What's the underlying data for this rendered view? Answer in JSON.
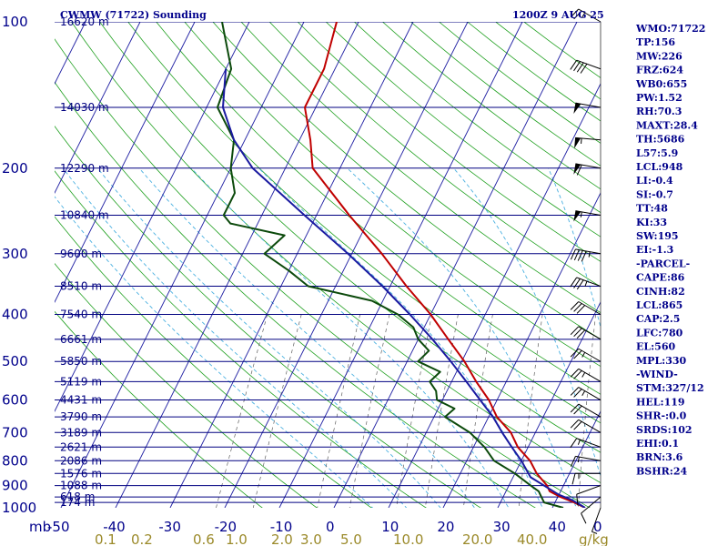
{
  "header": {
    "station": "CWMW (71722) Sounding",
    "time": "1200Z  9 AUG 25"
  },
  "chart_data": {
    "type": "line",
    "title": "CWMW (71722) Sounding",
    "pressure_levels": [
      100,
      200,
      300,
      400,
      500,
      600,
      700,
      800,
      900,
      1000
    ],
    "pressure_axis_label": "mb",
    "height_lines": [
      {
        "p": 100,
        "label": "16620 m"
      },
      {
        "p": 150,
        "label": "14030 m"
      },
      {
        "p": 200,
        "label": "12290 m"
      },
      {
        "p": 250,
        "label": "10840 m"
      },
      {
        "p": 300,
        "label": "9600 m"
      },
      {
        "p": 350,
        "label": "8510 m"
      },
      {
        "p": 400,
        "label": "7540 m"
      },
      {
        "p": 450,
        "label": "6661 m"
      },
      {
        "p": 500,
        "label": "5850 m"
      },
      {
        "p": 550,
        "label": "5119 m"
      },
      {
        "p": 600,
        "label": "4431 m"
      },
      {
        "p": 650,
        "label": "3790 m"
      },
      {
        "p": 700,
        "label": "3189 m"
      },
      {
        "p": 750,
        "label": "2621 m"
      },
      {
        "p": 800,
        "label": "2086 m"
      },
      {
        "p": 850,
        "label": "1576 m"
      },
      {
        "p": 900,
        "label": "1088 m"
      },
      {
        "p": 950,
        "label": "618 m"
      },
      {
        "p": 975,
        "label": "174 m"
      }
    ],
    "temperature_ticks": [
      -50,
      -40,
      -30,
      -20,
      -10,
      0,
      10,
      20,
      30,
      40,
      0
    ],
    "mixing_ratio_label": "g/kg",
    "mixing_ratio_ticks": [
      {
        "v": 0.1,
        "label": "0.1"
      },
      {
        "v": 0.2,
        "label": "0.2"
      },
      {
        "v": 0.6,
        "label": "0.6"
      },
      {
        "v": 1.0,
        "label": "1.0"
      },
      {
        "v": 2.0,
        "label": "2.0"
      },
      {
        "v": 3.0,
        "label": "3.0"
      },
      {
        "v": 5.0,
        "label": "5.0"
      },
      {
        "v": 10.0,
        "label": "10.0"
      },
      {
        "v": 20.0,
        "label": "20.0"
      },
      {
        "v": 40.0,
        "label": "40.0"
      }
    ],
    "series": [
      {
        "kind": "temperature",
        "color": "#c00000",
        "points": [
          [
            1000,
            26
          ],
          [
            975,
            23.5
          ],
          [
            950,
            20.5
          ],
          [
            925,
            18
          ],
          [
            900,
            17
          ],
          [
            850,
            14
          ],
          [
            800,
            11.6
          ],
          [
            750,
            8.1
          ],
          [
            700,
            5.5
          ],
          [
            650,
            1.5
          ],
          [
            600,
            -1.5
          ],
          [
            550,
            -5.5
          ],
          [
            500,
            -9.5
          ],
          [
            450,
            -14.5
          ],
          [
            400,
            -20
          ],
          [
            350,
            -27
          ],
          [
            300,
            -34.5
          ],
          [
            250,
            -44
          ],
          [
            200,
            -55
          ],
          [
            175,
            -58
          ],
          [
            150,
            -62
          ],
          [
            125,
            -62
          ],
          [
            100,
            -64
          ]
        ]
      },
      {
        "kind": "dewpoint",
        "color": "#0c4a0c",
        "points": [
          [
            1000,
            22
          ],
          [
            975,
            18
          ],
          [
            950,
            17
          ],
          [
            925,
            16
          ],
          [
            900,
            14
          ],
          [
            850,
            10
          ],
          [
            800,
            5
          ],
          [
            750,
            2
          ],
          [
            700,
            -2
          ],
          [
            650,
            -8
          ],
          [
            625,
            -7
          ],
          [
            600,
            -11
          ],
          [
            575,
            -12
          ],
          [
            550,
            -14
          ],
          [
            525,
            -13
          ],
          [
            500,
            -18
          ],
          [
            475,
            -17
          ],
          [
            450,
            -20
          ],
          [
            425,
            -22
          ],
          [
            400,
            -26
          ],
          [
            375,
            -32
          ],
          [
            350,
            -45
          ],
          [
            325,
            -50
          ],
          [
            300,
            -56
          ],
          [
            275,
            -54
          ],
          [
            260,
            -65
          ],
          [
            250,
            -67
          ],
          [
            225,
            -67
          ],
          [
            200,
            -70
          ],
          [
            175,
            -72
          ],
          [
            150,
            -78
          ],
          [
            125,
            -79
          ],
          [
            100,
            -85
          ]
        ]
      },
      {
        "kind": "parcel",
        "color": "#1a1aa0",
        "points": [
          [
            1000,
            26
          ],
          [
            965,
            23
          ],
          [
            940,
            20
          ],
          [
            865,
            13.2
          ],
          [
            800,
            10
          ],
          [
            750,
            7
          ],
          [
            700,
            3.9
          ],
          [
            650,
            0.8
          ],
          [
            600,
            -3.1
          ],
          [
            550,
            -7.3
          ],
          [
            500,
            -12
          ],
          [
            450,
            -17.4
          ],
          [
            400,
            -23.8
          ],
          [
            350,
            -31.4
          ],
          [
            300,
            -40.7
          ],
          [
            250,
            -52.2
          ],
          [
            200,
            -66
          ],
          [
            175,
            -72
          ],
          [
            150,
            -77
          ],
          [
            125,
            -80
          ]
        ]
      }
    ],
    "wind_barbs": [
      {
        "p": 1000,
        "dir": 200,
        "kt": 5
      },
      {
        "p": 950,
        "dir": 230,
        "kt": 10
      },
      {
        "p": 900,
        "dir": 250,
        "kt": 10
      },
      {
        "p": 850,
        "dir": 270,
        "kt": 15
      },
      {
        "p": 800,
        "dir": 280,
        "kt": 15
      },
      {
        "p": 750,
        "dir": 290,
        "kt": 15
      },
      {
        "p": 700,
        "dir": 300,
        "kt": 20
      },
      {
        "p": 650,
        "dir": 300,
        "kt": 20
      },
      {
        "p": 600,
        "dir": 300,
        "kt": 25
      },
      {
        "p": 550,
        "dir": 300,
        "kt": 25
      },
      {
        "p": 500,
        "dir": 300,
        "kt": 25
      },
      {
        "p": 450,
        "dir": 300,
        "kt": 30
      },
      {
        "p": 400,
        "dir": 300,
        "kt": 30
      },
      {
        "p": 350,
        "dir": 290,
        "kt": 35
      },
      {
        "p": 300,
        "dir": 280,
        "kt": 45
      },
      {
        "p": 250,
        "dir": 280,
        "kt": 55
      },
      {
        "p": 200,
        "dir": 280,
        "kt": 60
      },
      {
        "p": 175,
        "dir": 275,
        "kt": 55
      },
      {
        "p": 150,
        "dir": 280,
        "kt": 50
      },
      {
        "p": 125,
        "dir": 290,
        "kt": 40
      },
      {
        "p": 100,
        "dir": 300,
        "kt": 25
      }
    ]
  },
  "indices": [
    "WMO:71722",
    "TP:156",
    "MW:226",
    "FRZ:624",
    "WB0:655",
    "PW:1.52",
    "RH:70.3",
    "MAXT:28.4",
    "TH:5686",
    "L57:5.9",
    "LCL:948",
    "LI:-0.4",
    "SI:-0.7",
    "TT:48",
    "KI:33",
    "SW:195",
    "EI:-1.3",
    "-PARCEL-",
    "CAPE:86",
    "CINH:82",
    "LCL:865",
    "CAP:2.5",
    "LFC:780",
    "EL:560",
    "MPL:330",
    "-WIND-",
    "STM:327/12",
    "HEL:119",
    "SHR-:0.0",
    "SRDS:102",
    "EHI:0.1",
    "BRN:3.6",
    "BSHR:24"
  ],
  "colors": {
    "isobar": "#000080",
    "isotherm": "#1a1aa0",
    "dry_adiabat": "#20a020",
    "moist_adiabat": "#4ab0e0",
    "mixing_ratio": "#606060",
    "temperature": "#c00000",
    "dewpoint": "#0c4a0c",
    "parcel": "#1a1aa0",
    "labels": "#00008b",
    "mixing_labels": "#9b8a2a"
  }
}
